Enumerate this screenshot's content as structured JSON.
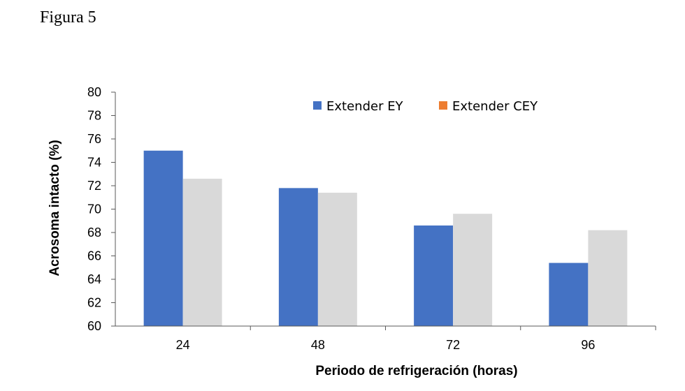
{
  "figure_label": "Figura 5",
  "colors": {
    "series_1": "#4472c4",
    "series_2_bars": "#d9d9d9",
    "series_2_legend": "#ed7d31",
    "axis": "#595959"
  },
  "chart_data": {
    "type": "bar",
    "title": "",
    "xlabel": "Periodo de refrigeración (horas)",
    "ylabel": "Acrosoma intacto (%)",
    "categories": [
      "24",
      "48",
      "72",
      "96"
    ],
    "ylim": [
      60,
      80
    ],
    "yticks": [
      60,
      62,
      64,
      66,
      68,
      70,
      72,
      74,
      76,
      78,
      80
    ],
    "grid": false,
    "legend_position": "top-right",
    "series": [
      {
        "name": "Extender EY",
        "values": [
          75.0,
          71.8,
          68.6,
          65.4
        ]
      },
      {
        "name": "Extender CEY",
        "values": [
          72.6,
          71.4,
          69.6,
          68.2
        ]
      }
    ]
  }
}
